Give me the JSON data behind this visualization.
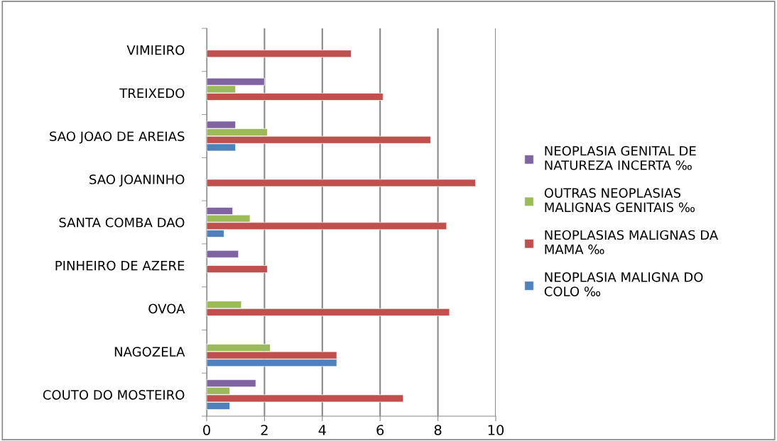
{
  "chart_data": {
    "type": "bar",
    "orientation": "horizontal",
    "categories": [
      "VIMIEIRO",
      "TREIXEDO",
      "SAO JOAO DE AREIAS",
      "SAO JOANINHO",
      "SANTA COMBA DAO",
      "PINHEIRO DE AZERE",
      "OVOA",
      "NAGOZELA",
      "COUTO DO MOSTEIRO"
    ],
    "series": [
      {
        "name": "NEOPLASIA MALIGNA DO\nCOLO ‰",
        "color": "#4f81bd",
        "values": [
          null,
          null,
          1.0,
          null,
          0.6,
          null,
          null,
          4.5,
          0.8
        ]
      },
      {
        "name": "NEOPLASIAS MALIGNAS DA\nMAMA ‰",
        "color": "#c0504d",
        "values": [
          5.0,
          6.1,
          7.75,
          9.3,
          8.3,
          2.1,
          8.4,
          4.5,
          6.8
        ]
      },
      {
        "name": "OUTRAS NEOPLASIAS\nMALIGNAS GENITAIS ‰",
        "color": "#9bbb59",
        "values": [
          null,
          1.0,
          2.1,
          null,
          1.5,
          null,
          1.2,
          2.2,
          0.8
        ]
      },
      {
        "name": "NEOPLASIA GENITAL DE\nNATUREZA INCERTA ‰",
        "color": "#8064a2",
        "values": [
          null,
          2.0,
          1.0,
          null,
          0.9,
          1.1,
          null,
          null,
          1.7
        ]
      }
    ],
    "xlim": [
      0,
      10
    ],
    "xticks": [
      0,
      2,
      4,
      6,
      8,
      10
    ],
    "grid": "x",
    "legend": "right"
  }
}
